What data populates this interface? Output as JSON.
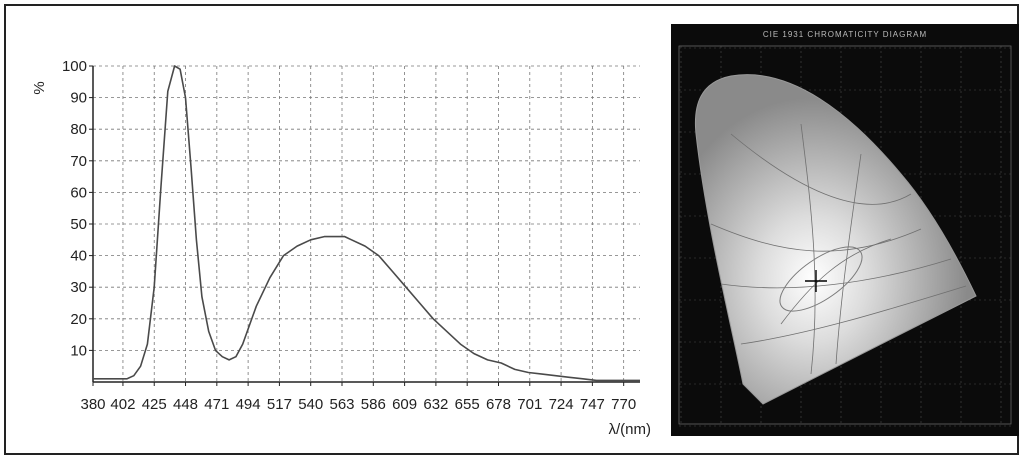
{
  "chart_data": {
    "type": "line",
    "xlabel": "λ/(nm)",
    "ylabel": "%",
    "x_ticks": [
      "380",
      "402",
      "425",
      "448",
      "471",
      "494",
      "517",
      "540",
      "563",
      "586",
      "609",
      "632",
      "655",
      "678",
      "701",
      "724",
      "747",
      "770"
    ],
    "y_ticks": [
      "10",
      "20",
      "30",
      "40",
      "50",
      "60",
      "70",
      "80",
      "90",
      "100"
    ],
    "xlim": [
      380,
      782
    ],
    "ylim": [
      0,
      100
    ],
    "grid": true,
    "series": [
      {
        "x": [
          380,
          395,
          405,
          410,
          415,
          420,
          425,
          430,
          435,
          440,
          444,
          448,
          452,
          456,
          460,
          465,
          470,
          475,
          480,
          485,
          490,
          495,
          500,
          510,
          520,
          530,
          540,
          550,
          560,
          565,
          570,
          580,
          590,
          600,
          610,
          620,
          630,
          640,
          650,
          660,
          670,
          680,
          690,
          700,
          710,
          720,
          730,
          740,
          750,
          760,
          770,
          775,
          782
        ],
        "values": [
          1,
          1,
          1,
          2,
          5,
          12,
          30,
          62,
          92,
          100,
          99,
          90,
          68,
          45,
          27,
          16,
          10,
          8,
          7,
          8,
          12,
          18,
          24,
          33,
          40,
          43,
          45,
          46,
          46,
          46,
          45,
          43,
          40,
          35,
          30,
          25,
          20,
          16,
          12,
          9,
          7,
          6,
          4,
          3,
          2.5,
          2,
          1.5,
          1,
          0.5,
          0.5,
          0.5,
          0.5,
          0.5
        ]
      }
    ]
  },
  "cie_panel": {
    "title": "CIE 1931 CHROMATICITY DIAGRAM"
  }
}
